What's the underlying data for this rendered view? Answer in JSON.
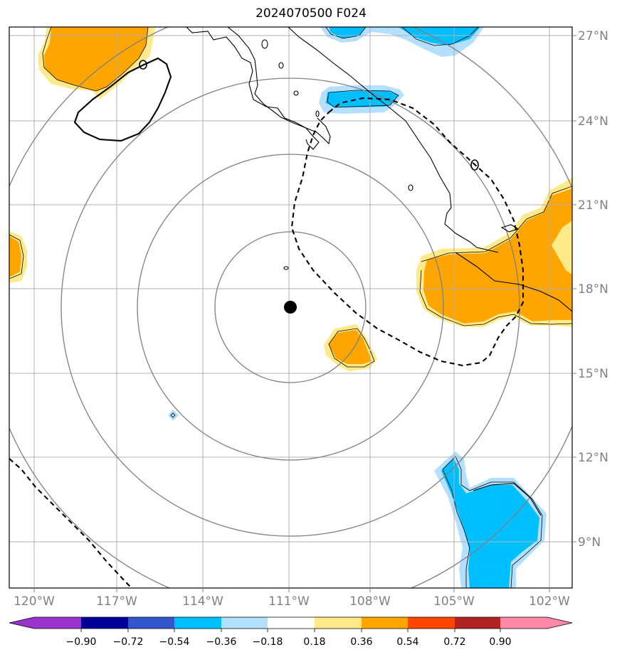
{
  "title": "2024070500 F024",
  "map": {
    "center_marker": {
      "lon": -110.9,
      "lat": 17.2
    },
    "range_rings": 4,
    "contour_levels": [
      -0.9,
      -0.72,
      -0.54,
      -0.36,
      -0.18,
      0.18,
      0.36,
      0.54,
      0.72,
      0.9
    ]
  },
  "axes": {
    "lon_labels": [
      "120°W",
      "117°W",
      "114°W",
      "111°W",
      "108°W",
      "105°W",
      "102°W"
    ],
    "lat_labels": [
      "27°N",
      "24°N",
      "21°N",
      "18°N",
      "15°N",
      "12°N",
      "9°N"
    ]
  },
  "colorbar": {
    "colors": [
      "#9933cc",
      "#000099",
      "#3355cc",
      "#00bfff",
      "#b3e0ff",
      "#ffffff",
      "#ffea8a",
      "#ffa500",
      "#ff4500",
      "#b22222",
      "#ff88aa"
    ],
    "tick_labels": [
      "−0.90",
      "−0.72",
      "−0.54",
      "−0.36",
      "−0.18",
      "0.18",
      "0.36",
      "0.54",
      "0.72",
      "0.90"
    ]
  }
}
